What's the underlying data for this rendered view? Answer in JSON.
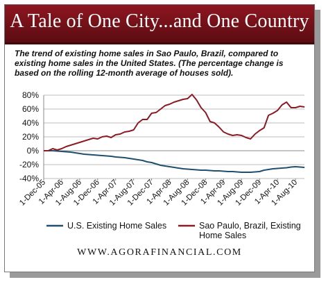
{
  "banner_title": "A Tale of One City...and One Country",
  "subtitle": "The trend of existing home sales in Sao Paulo, Brazil, compared to existing home sales in the United States. (The percentage change is based on the rolling 12-month average of houses sold).",
  "footer": "WWW.AGORAFINANCIAL.COM",
  "colors": {
    "banner": "#7a111b",
    "us_series": "#1f4e6e",
    "sp_series": "#8b1a23"
  },
  "chart_data": {
    "type": "line",
    "x": [
      "1-Dec-05",
      "1-Jan-06",
      "1-Feb-06",
      "1-Mar-06",
      "1-Apr-06",
      "1-May-06",
      "1-Jun-06",
      "1-Jul-06",
      "1-Aug-06",
      "1-Sep-06",
      "1-Oct-06",
      "1-Nov-06",
      "1-Dec-06",
      "1-Jan-07",
      "1-Feb-07",
      "1-Mar-07",
      "1-Apr-07",
      "1-May-07",
      "1-Jun-07",
      "1-Jul-07",
      "1-Aug-07",
      "1-Sep-07",
      "1-Oct-07",
      "1-Nov-07",
      "1-Dec-07",
      "1-Jan-08",
      "1-Feb-08",
      "1-Mar-08",
      "1-Apr-08",
      "1-May-08",
      "1-Jun-08",
      "1-Jul-08",
      "1-Aug-08",
      "1-Sep-08",
      "1-Oct-08",
      "1-Nov-08",
      "1-Dec-08",
      "1-Jan-09",
      "1-Feb-09",
      "1-Mar-09",
      "1-Apr-09",
      "1-May-09",
      "1-Jun-09",
      "1-Jul-09",
      "1-Aug-09",
      "1-Sep-09",
      "1-Oct-09",
      "1-Nov-09",
      "1-Dec-09",
      "1-Jan-10",
      "1-Feb-10",
      "1-Mar-10",
      "1-Apr-10",
      "1-May-10",
      "1-Jun-10",
      "1-Jul-10",
      "1-Aug-10",
      "1-Sep-10",
      "1-Oct-10"
    ],
    "tick_labels": [
      "1-Dec-05",
      "1-Apr-06",
      "1-Aug-06",
      "1-Dec-06",
      "1-Apr-07",
      "1-Aug-07",
      "1-Dec-07",
      "1-Apr-08",
      "1-Aug-08",
      "1-Dec-08",
      "1-Apr-09",
      "1-Aug-09",
      "1-Dec-09",
      "1-Apr-10",
      "1-Aug-10"
    ],
    "ylim": [
      -40,
      80
    ],
    "yticks": [
      80,
      60,
      40,
      20,
      0,
      -20,
      -40
    ],
    "ytick_labels": [
      "80%",
      "60%",
      "40%",
      "20%",
      "0%",
      "-20%",
      "-40%"
    ],
    "grid": true,
    "series": [
      {
        "name": "U.S. Existing Home Sales",
        "color": "#1f4e6e",
        "values": [
          0,
          0,
          0,
          -0.5,
          -1,
          -1.5,
          -2,
          -3,
          -4,
          -5,
          -5.5,
          -6,
          -6.5,
          -7,
          -7.5,
          -8,
          -9,
          -9.5,
          -10,
          -11,
          -12,
          -13,
          -14,
          -16,
          -17,
          -19,
          -21,
          -22,
          -23,
          -24,
          -25,
          -26,
          -26.5,
          -27,
          -27.5,
          -28,
          -28,
          -28.5,
          -29,
          -29,
          -29.5,
          -30,
          -30,
          -30.5,
          -31,
          -31,
          -31,
          -30.5,
          -30,
          -28,
          -27,
          -26,
          -25.5,
          -25,
          -24.5,
          -23.5,
          -23,
          -23.5,
          -24
        ]
      },
      {
        "name": "Sao Paulo, Brazil, Existing Home Sales",
        "color": "#8b1a23",
        "values": [
          0,
          0,
          3,
          1,
          3,
          6,
          8,
          10,
          12,
          14,
          16,
          18,
          17,
          20,
          21,
          19,
          23,
          24,
          27,
          28,
          30,
          40,
          45,
          45,
          54,
          55,
          60,
          65,
          67,
          70,
          72,
          74,
          75,
          81,
          73,
          62,
          55,
          42,
          40,
          34,
          27,
          24,
          22,
          23,
          22,
          19,
          17,
          24,
          29,
          33,
          51,
          54,
          58,
          66,
          70,
          62,
          62,
          64,
          63
        ]
      }
    ]
  }
}
